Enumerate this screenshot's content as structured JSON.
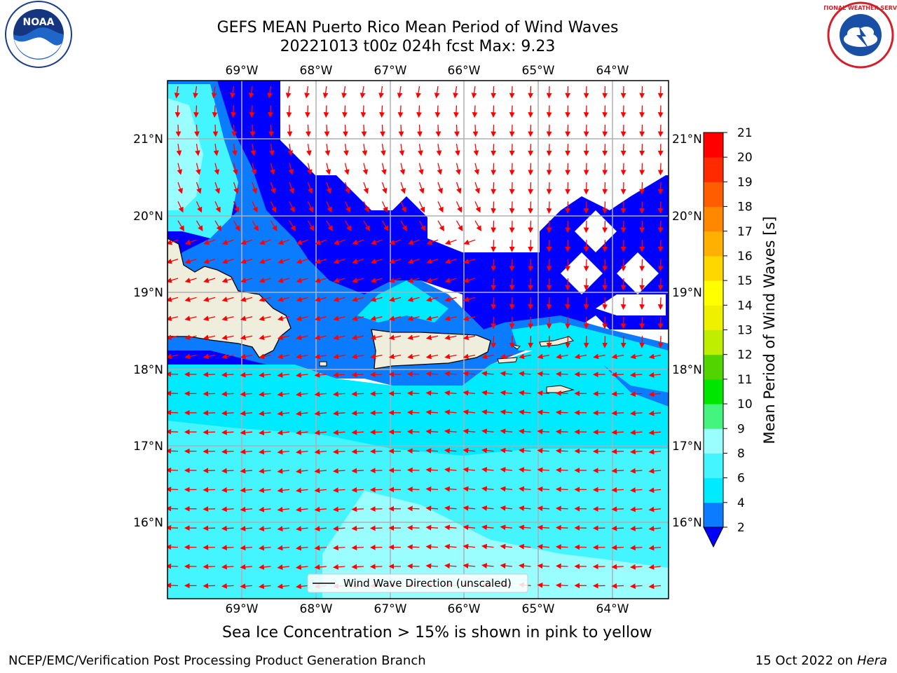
{
  "header": {
    "title_line1": "GEFS MEAN Puerto Rico Mean Period of Wind Waves",
    "title_line2": "20221013 t00z 024h fcst   Max: 9.23"
  },
  "logos": {
    "left": "NOAA",
    "right": "NATIONAL WEATHER SERVICE"
  },
  "map": {
    "lon_labels": [
      "69°W",
      "68°W",
      "67°W",
      "66°W",
      "65°W",
      "64°W"
    ],
    "lat_labels": [
      "21°N",
      "20°N",
      "19°N",
      "18°N",
      "17°N",
      "16°N"
    ],
    "legend_text": "Wind Wave Direction (unscaled)"
  },
  "colorbar": {
    "label": "Mean Period of Wind Waves [s]",
    "ticks": [
      "2",
      "4",
      "6",
      "8",
      "9",
      "10",
      "11",
      "12",
      "13",
      "14",
      "15",
      "16",
      "17",
      "18",
      "19",
      "20",
      "21"
    ],
    "colors": [
      "#0000ff",
      "#0b7cff",
      "#00eaff",
      "#44f4ff",
      "#9afdff",
      "#44f47e",
      "#00e600",
      "#52d400",
      "#bfee00",
      "#eef000",
      "#ffff00",
      "#ffd700",
      "#ffb000",
      "#ff8800",
      "#ff5d00",
      "#ff2a00",
      "#ff0000"
    ]
  },
  "caption": "Sea Ice Concentration > 15% is shown in pink to yellow",
  "footer": {
    "left": "NCEP/EMC/Verification Post Processing Product Generation Branch",
    "right_date": "15 Oct 2022 on ",
    "right_host": "Hera"
  }
}
